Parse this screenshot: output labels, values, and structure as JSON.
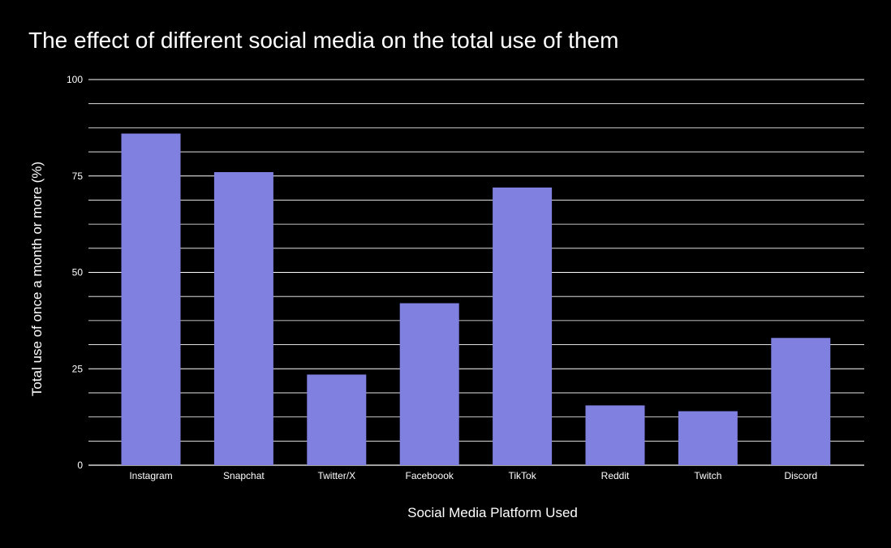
{
  "chart_data": {
    "type": "bar",
    "title": "The effect of different social media on the total use of them",
    "xlabel": "Social Media Platform Used",
    "ylabel": "Total use of once a month or more (%)",
    "categories": [
      "Instagram",
      "Snapchat",
      "Twitter/X",
      "Faceboook",
      "TikTok",
      "Reddit",
      "Twitch",
      "Discord"
    ],
    "values": [
      86,
      76,
      23.5,
      42,
      72,
      15.5,
      14,
      33
    ],
    "ylim": [
      0,
      100
    ],
    "yticks": [
      0,
      25,
      50,
      75,
      100
    ],
    "minor_gridlines_per_major": 3,
    "grid": true,
    "legend": "none",
    "colors": {
      "background": "#000000",
      "bar": "#7f80e0",
      "grid": "#ffffff",
      "text": "#ffffff"
    }
  }
}
